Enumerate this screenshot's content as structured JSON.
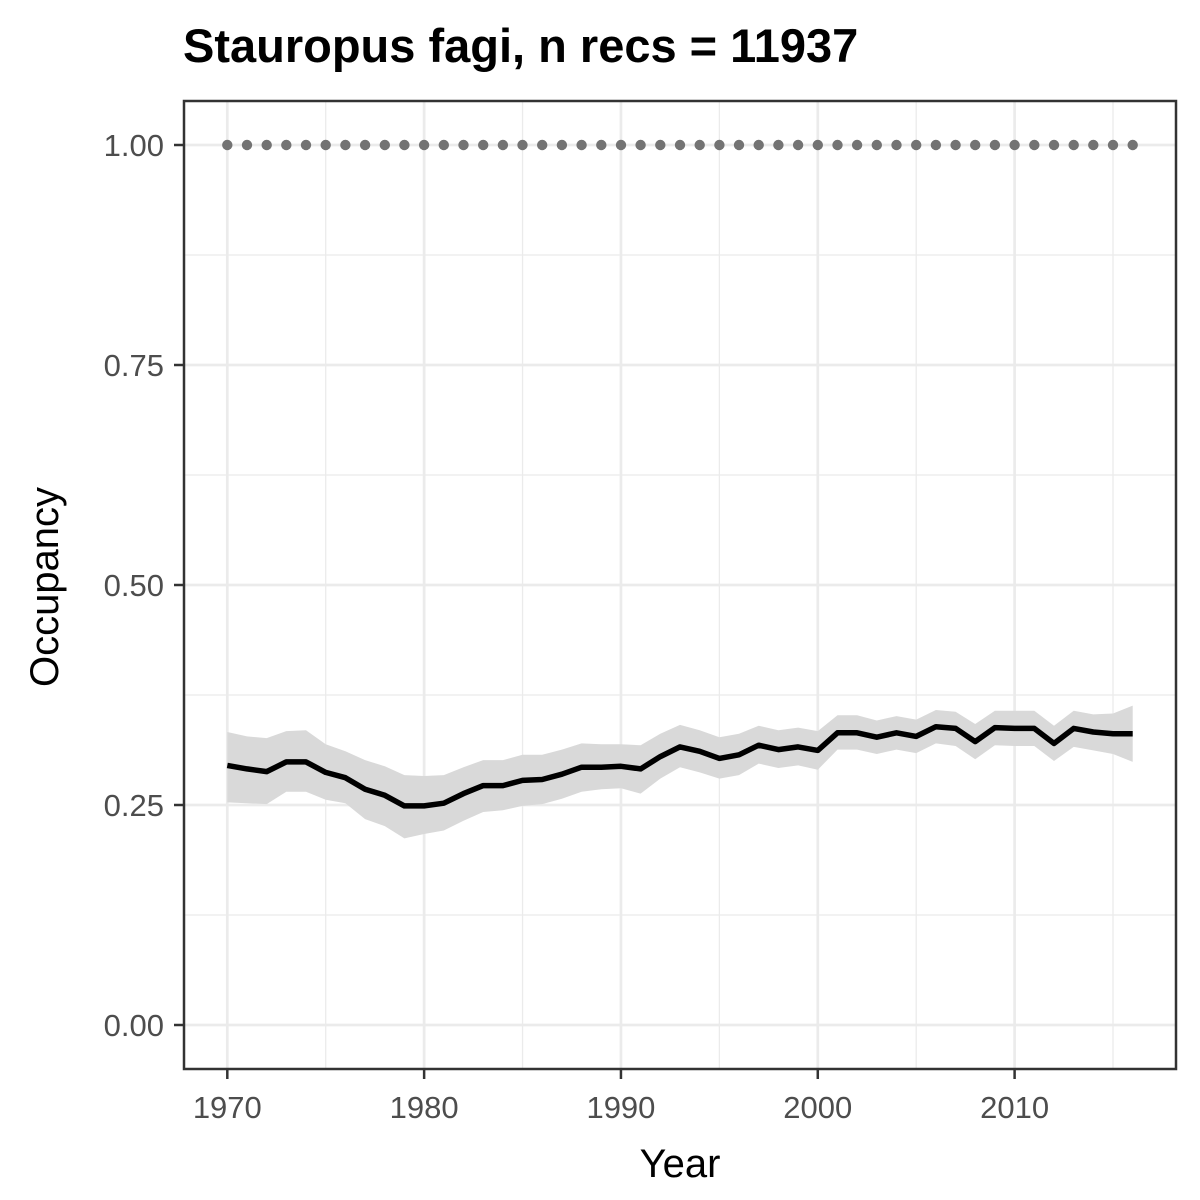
{
  "chart_data": {
    "type": "line",
    "title": "Stauropus fagi, n recs = 11937",
    "xlabel": "Year",
    "ylabel": "Occupancy",
    "xlim": [
      1967.8,
      2018.2
    ],
    "ylim": [
      -0.05,
      1.05
    ],
    "x_ticks": [
      1970,
      1980,
      1990,
      2000,
      2010
    ],
    "x_tick_labels": [
      "1970",
      "1980",
      "1990",
      "2000",
      "2010"
    ],
    "y_ticks": [
      0,
      0.25,
      0.5,
      0.75,
      1
    ],
    "y_tick_labels": [
      "0.00",
      "0.25",
      "0.50",
      "0.75",
      "1.00"
    ],
    "grid": true,
    "colors": {
      "line": "#000000",
      "ribbon": "#d9d9d9",
      "dots": "#737373",
      "panel_border": "#333333",
      "grid": "#ebebeb"
    },
    "x": [
      1970,
      1971,
      1972,
      1973,
      1974,
      1975,
      1976,
      1977,
      1978,
      1979,
      1980,
      1981,
      1982,
      1983,
      1984,
      1985,
      1986,
      1987,
      1988,
      1989,
      1990,
      1991,
      1992,
      1993,
      1994,
      1995,
      1996,
      1997,
      1998,
      1999,
      2000,
      2001,
      2002,
      2003,
      2004,
      2005,
      2006,
      2007,
      2008,
      2009,
      2010,
      2011,
      2012,
      2013,
      2014,
      2015,
      2016
    ],
    "series": [
      {
        "values": [
          0.295,
          0.291,
          0.288,
          0.299,
          0.299,
          0.287,
          0.281,
          0.268,
          0.261,
          0.249,
          0.249,
          0.252,
          0.263,
          0.272,
          0.272,
          0.278,
          0.279,
          0.285,
          0.293,
          0.293,
          0.294,
          0.291,
          0.305,
          0.316,
          0.311,
          0.303,
          0.307,
          0.318,
          0.313,
          0.316,
          0.312,
          0.332,
          0.332,
          0.327,
          0.332,
          0.328,
          0.339,
          0.337,
          0.322,
          0.338,
          0.337,
          0.337,
          0.32,
          0.337,
          0.333,
          0.331,
          0.331
        ],
        "lower": [
          0.253,
          0.252,
          0.251,
          0.265,
          0.265,
          0.256,
          0.252,
          0.234,
          0.226,
          0.212,
          0.217,
          0.221,
          0.232,
          0.242,
          0.244,
          0.249,
          0.251,
          0.257,
          0.265,
          0.268,
          0.269,
          0.263,
          0.28,
          0.293,
          0.287,
          0.28,
          0.284,
          0.297,
          0.292,
          0.295,
          0.29,
          0.313,
          0.313,
          0.308,
          0.313,
          0.309,
          0.32,
          0.317,
          0.302,
          0.318,
          0.317,
          0.317,
          0.3,
          0.316,
          0.312,
          0.308,
          0.299
        ],
        "upper": [
          0.333,
          0.328,
          0.326,
          0.334,
          0.335,
          0.319,
          0.311,
          0.301,
          0.294,
          0.284,
          0.283,
          0.284,
          0.293,
          0.301,
          0.301,
          0.307,
          0.307,
          0.313,
          0.32,
          0.319,
          0.319,
          0.318,
          0.331,
          0.341,
          0.335,
          0.327,
          0.331,
          0.34,
          0.335,
          0.338,
          0.334,
          0.352,
          0.352,
          0.346,
          0.351,
          0.347,
          0.358,
          0.356,
          0.342,
          0.357,
          0.357,
          0.357,
          0.34,
          0.357,
          0.353,
          0.354,
          0.363
        ]
      },
      {
        "style": "dotted",
        "values": [
          1,
          1,
          1,
          1,
          1,
          1,
          1,
          1,
          1,
          1,
          1,
          1,
          1,
          1,
          1,
          1,
          1,
          1,
          1,
          1,
          1,
          1,
          1,
          1,
          1,
          1,
          1,
          1,
          1,
          1,
          1,
          1,
          1,
          1,
          1,
          1,
          1,
          1,
          1,
          1,
          1,
          1,
          1,
          1,
          1,
          1,
          1
        ]
      }
    ]
  }
}
